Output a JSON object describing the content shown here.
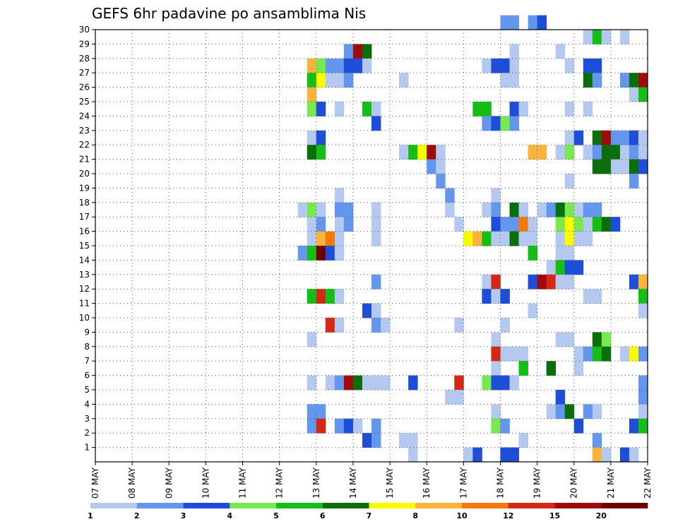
{
  "chart_data": {
    "type": "heatmap",
    "title": "GEFS 6hr padavine po ansamblima Nis",
    "x_tick_labels": [
      "07 MAY",
      "08 MAY",
      "09 MAY",
      "10 MAY",
      "11 MAY",
      "12 MAY",
      "13 MAY",
      "14 MAY",
      "15 MAY",
      "16 MAY",
      "17 MAY",
      "18 MAY",
      "19 MAY",
      "20 MAY",
      "21 MAY",
      "22 MAY"
    ],
    "y_tick_labels": [
      "1",
      "2",
      "3",
      "4",
      "5",
      "6",
      "7",
      "8",
      "9",
      "10",
      "11",
      "12",
      "13",
      "14",
      "15",
      "16",
      "17",
      "18",
      "19",
      "20",
      "21",
      "22",
      "23",
      "24",
      "25",
      "26",
      "27",
      "28",
      "29",
      "30"
    ],
    "y_range": [
      0,
      30
    ],
    "x_range_days": [
      0,
      15
    ],
    "steps_per_day": 4,
    "grid": "dotted",
    "colorbar": {
      "labels": [
        "1",
        "2",
        "3",
        "4",
        "5",
        "6",
        "7",
        "8",
        "10",
        "12",
        "15",
        "20"
      ],
      "colors": [
        "#b4c8f0",
        "#6496ee",
        "#1e4ed8",
        "#78ea50",
        "#14be14",
        "#0a6e0a",
        "#fafa00",
        "#fab43c",
        "#f5780a",
        "#d22814",
        "#a00a0a",
        "#6e0000"
      ]
    },
    "cells": [
      [
        30,
        44,
        1
      ],
      [
        30,
        45,
        1
      ],
      [
        30,
        47,
        1
      ],
      [
        30,
        48,
        2
      ],
      [
        29,
        53,
        0
      ],
      [
        29,
        54,
        4
      ],
      [
        29,
        55,
        0
      ],
      [
        29,
        57,
        0
      ],
      [
        28,
        27,
        1
      ],
      [
        28,
        28,
        10
      ],
      [
        28,
        29,
        5
      ],
      [
        28,
        45,
        0
      ],
      [
        28,
        50,
        0
      ],
      [
        27,
        23,
        7
      ],
      [
        27,
        24,
        3
      ],
      [
        27,
        25,
        1
      ],
      [
        27,
        26,
        1
      ],
      [
        27,
        27,
        2
      ],
      [
        27,
        28,
        2
      ],
      [
        27,
        29,
        0
      ],
      [
        27,
        42,
        0
      ],
      [
        27,
        43,
        2
      ],
      [
        27,
        44,
        2
      ],
      [
        27,
        45,
        0
      ],
      [
        27,
        51,
        0
      ],
      [
        27,
        53,
        2
      ],
      [
        27,
        54,
        2
      ],
      [
        26,
        23,
        4
      ],
      [
        26,
        24,
        6
      ],
      [
        26,
        25,
        0
      ],
      [
        26,
        26,
        0
      ],
      [
        26,
        27,
        1
      ],
      [
        26,
        33,
        0
      ],
      [
        26,
        44,
        0
      ],
      [
        26,
        45,
        0
      ],
      [
        26,
        53,
        5
      ],
      [
        26,
        54,
        1
      ],
      [
        26,
        57,
        1
      ],
      [
        26,
        58,
        5
      ],
      [
        26,
        59,
        10
      ],
      [
        25,
        23,
        7
      ],
      [
        25,
        58,
        0
      ],
      [
        25,
        59,
        4
      ],
      [
        24,
        23,
        3
      ],
      [
        24,
        24,
        2
      ],
      [
        24,
        26,
        0
      ],
      [
        24,
        29,
        4
      ],
      [
        24,
        30,
        0
      ],
      [
        24,
        41,
        4
      ],
      [
        24,
        42,
        4
      ],
      [
        24,
        45,
        2
      ],
      [
        24,
        46,
        0
      ],
      [
        24,
        51,
        0
      ],
      [
        24,
        53,
        0
      ],
      [
        23,
        30,
        2
      ],
      [
        23,
        42,
        1
      ],
      [
        23,
        43,
        2
      ],
      [
        23,
        44,
        3
      ],
      [
        23,
        45,
        1
      ],
      [
        22,
        23,
        0
      ],
      [
        22,
        24,
        2
      ],
      [
        22,
        51,
        0
      ],
      [
        22,
        52,
        2
      ],
      [
        22,
        54,
        5
      ],
      [
        22,
        55,
        10
      ],
      [
        22,
        56,
        1
      ],
      [
        22,
        57,
        1
      ],
      [
        22,
        58,
        2
      ],
      [
        22,
        59,
        0
      ],
      [
        21,
        23,
        5
      ],
      [
        21,
        24,
        4
      ],
      [
        21,
        33,
        0
      ],
      [
        21,
        34,
        4
      ],
      [
        21,
        35,
        6
      ],
      [
        21,
        36,
        10
      ],
      [
        21,
        37,
        0
      ],
      [
        21,
        47,
        7
      ],
      [
        21,
        48,
        7
      ],
      [
        21,
        50,
        0
      ],
      [
        21,
        51,
        3
      ],
      [
        21,
        53,
        0
      ],
      [
        21,
        54,
        1
      ],
      [
        21,
        55,
        5
      ],
      [
        21,
        56,
        5
      ],
      [
        21,
        57,
        0
      ],
      [
        21,
        58,
        1
      ],
      [
        21,
        59,
        0
      ],
      [
        20,
        36,
        1
      ],
      [
        20,
        37,
        0
      ],
      [
        20,
        54,
        5
      ],
      [
        20,
        55,
        5
      ],
      [
        20,
        56,
        0
      ],
      [
        20,
        57,
        0
      ],
      [
        20,
        58,
        5
      ],
      [
        20,
        59,
        2
      ],
      [
        19,
        37,
        1
      ],
      [
        19,
        51,
        0
      ],
      [
        19,
        58,
        1
      ],
      [
        18,
        26,
        0
      ],
      [
        18,
        38,
        1
      ],
      [
        18,
        43,
        0
      ],
      [
        17,
        22,
        0
      ],
      [
        17,
        23,
        3
      ],
      [
        17,
        24,
        0
      ],
      [
        17,
        26,
        1
      ],
      [
        17,
        27,
        1
      ],
      [
        17,
        30,
        0
      ],
      [
        17,
        38,
        0
      ],
      [
        17,
        42,
        0
      ],
      [
        17,
        43,
        1
      ],
      [
        17,
        45,
        5
      ],
      [
        17,
        46,
        0
      ],
      [
        17,
        48,
        0
      ],
      [
        17,
        49,
        1
      ],
      [
        17,
        50,
        5
      ],
      [
        17,
        51,
        3
      ],
      [
        17,
        52,
        0
      ],
      [
        17,
        53,
        1
      ],
      [
        17,
        54,
        1
      ],
      [
        16,
        23,
        0
      ],
      [
        16,
        24,
        1
      ],
      [
        16,
        26,
        0
      ],
      [
        16,
        27,
        1
      ],
      [
        16,
        30,
        0
      ],
      [
        16,
        39,
        0
      ],
      [
        16,
        43,
        2
      ],
      [
        16,
        44,
        1
      ],
      [
        16,
        45,
        1
      ],
      [
        16,
        46,
        8
      ],
      [
        16,
        47,
        0
      ],
      [
        16,
        50,
        3
      ],
      [
        16,
        51,
        6
      ],
      [
        16,
        52,
        3
      ],
      [
        16,
        53,
        0
      ],
      [
        16,
        54,
        4
      ],
      [
        16,
        55,
        5
      ],
      [
        16,
        56,
        2
      ],
      [
        15,
        23,
        0
      ],
      [
        15,
        24,
        7
      ],
      [
        15,
        25,
        8
      ],
      [
        15,
        26,
        0
      ],
      [
        15,
        30,
        0
      ],
      [
        15,
        40,
        6
      ],
      [
        15,
        41,
        7
      ],
      [
        15,
        42,
        4
      ],
      [
        15,
        43,
        0
      ],
      [
        15,
        44,
        0
      ],
      [
        15,
        45,
        5
      ],
      [
        15,
        46,
        0
      ],
      [
        15,
        47,
        0
      ],
      [
        15,
        50,
        0
      ],
      [
        15,
        51,
        6
      ],
      [
        15,
        52,
        0
      ],
      [
        15,
        53,
        0
      ],
      [
        14,
        22,
        1
      ],
      [
        14,
        23,
        4
      ],
      [
        14,
        24,
        11
      ],
      [
        14,
        25,
        2
      ],
      [
        14,
        26,
        0
      ],
      [
        14,
        47,
        4
      ],
      [
        14,
        50,
        0
      ],
      [
        14,
        51,
        0
      ],
      [
        13,
        49,
        0
      ],
      [
        13,
        50,
        4
      ],
      [
        13,
        51,
        2
      ],
      [
        13,
        52,
        2
      ],
      [
        12,
        30,
        1
      ],
      [
        12,
        42,
        0
      ],
      [
        12,
        43,
        9
      ],
      [
        12,
        47,
        2
      ],
      [
        12,
        48,
        10
      ],
      [
        12,
        49,
        9
      ],
      [
        12,
        50,
        0
      ],
      [
        12,
        51,
        0
      ],
      [
        12,
        58,
        2
      ],
      [
        12,
        59,
        7
      ],
      [
        11,
        23,
        4
      ],
      [
        11,
        24,
        9
      ],
      [
        11,
        25,
        4
      ],
      [
        11,
        26,
        0
      ],
      [
        11,
        42,
        2
      ],
      [
        11,
        43,
        0
      ],
      [
        11,
        44,
        2
      ],
      [
        11,
        53,
        0
      ],
      [
        11,
        54,
        0
      ],
      [
        11,
        59,
        4
      ],
      [
        10,
        29,
        2
      ],
      [
        10,
        30,
        0
      ],
      [
        10,
        47,
        0
      ],
      [
        10,
        59,
        0
      ],
      [
        9,
        25,
        9
      ],
      [
        9,
        26,
        0
      ],
      [
        9,
        30,
        1
      ],
      [
        9,
        31,
        0
      ],
      [
        9,
        39,
        0
      ],
      [
        9,
        44,
        0
      ],
      [
        8,
        23,
        0
      ],
      [
        8,
        43,
        0
      ],
      [
        8,
        50,
        0
      ],
      [
        8,
        51,
        0
      ],
      [
        8,
        54,
        5
      ],
      [
        8,
        55,
        3
      ],
      [
        7,
        43,
        9
      ],
      [
        7,
        44,
        0
      ],
      [
        7,
        45,
        0
      ],
      [
        7,
        46,
        0
      ],
      [
        7,
        52,
        0
      ],
      [
        7,
        53,
        1
      ],
      [
        7,
        54,
        4
      ],
      [
        7,
        55,
        5
      ],
      [
        7,
        57,
        0
      ],
      [
        7,
        58,
        6
      ],
      [
        7,
        59,
        1
      ],
      [
        6,
        43,
        0
      ],
      [
        6,
        46,
        4
      ],
      [
        6,
        49,
        5
      ],
      [
        6,
        52,
        0
      ],
      [
        5,
        23,
        0
      ],
      [
        5,
        25,
        0
      ],
      [
        5,
        26,
        1
      ],
      [
        5,
        27,
        10
      ],
      [
        5,
        28,
        5
      ],
      [
        5,
        29,
        0
      ],
      [
        5,
        30,
        0
      ],
      [
        5,
        31,
        0
      ],
      [
        5,
        34,
        2
      ],
      [
        5,
        39,
        9
      ],
      [
        5,
        42,
        3
      ],
      [
        5,
        43,
        2
      ],
      [
        5,
        44,
        2
      ],
      [
        5,
        45,
        0
      ],
      [
        5,
        59,
        1
      ],
      [
        4,
        38,
        0
      ],
      [
        4,
        39,
        0
      ],
      [
        4,
        50,
        2
      ],
      [
        4,
        59,
        1
      ],
      [
        3,
        23,
        1
      ],
      [
        3,
        24,
        1
      ],
      [
        3,
        43,
        0
      ],
      [
        3,
        49,
        0
      ],
      [
        3,
        50,
        1
      ],
      [
        3,
        51,
        5
      ],
      [
        3,
        53,
        1
      ],
      [
        3,
        54,
        0
      ],
      [
        3,
        59,
        0
      ],
      [
        2,
        23,
        1
      ],
      [
        2,
        24,
        9
      ],
      [
        2,
        26,
        1
      ],
      [
        2,
        27,
        2
      ],
      [
        2,
        28,
        0
      ],
      [
        2,
        30,
        1
      ],
      [
        2,
        43,
        3
      ],
      [
        2,
        44,
        1
      ],
      [
        2,
        52,
        2
      ],
      [
        2,
        58,
        2
      ],
      [
        2,
        59,
        4
      ],
      [
        1,
        29,
        2
      ],
      [
        1,
        30,
        1
      ],
      [
        1,
        33,
        0
      ],
      [
        1,
        34,
        0
      ],
      [
        1,
        46,
        0
      ],
      [
        1,
        54,
        1
      ],
      [
        0,
        34,
        0
      ],
      [
        0,
        40,
        0
      ],
      [
        0,
        41,
        2
      ],
      [
        0,
        44,
        2
      ],
      [
        0,
        45,
        2
      ],
      [
        0,
        54,
        7
      ],
      [
        0,
        55,
        0
      ],
      [
        0,
        57,
        2
      ],
      [
        0,
        58,
        0
      ]
    ]
  }
}
